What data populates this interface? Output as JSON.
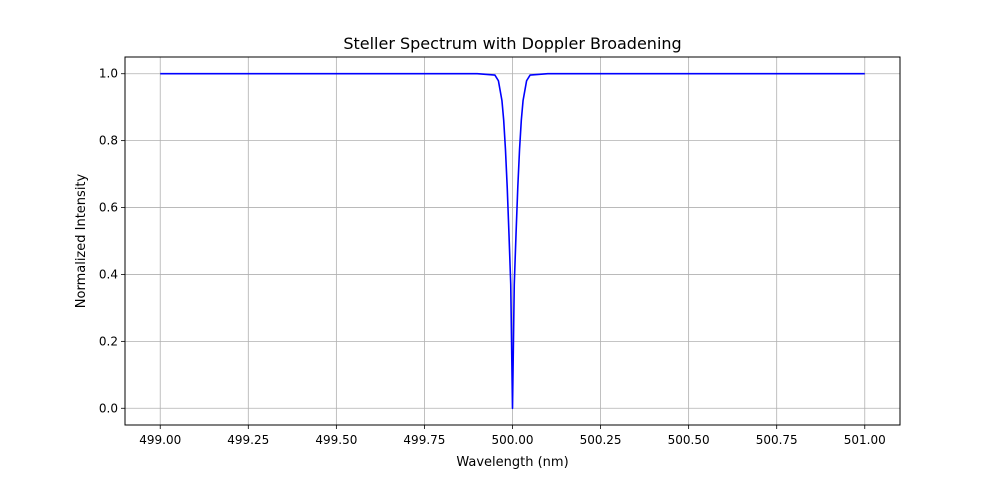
{
  "chart_data": {
    "type": "line",
    "title": "Steller Spectrum with Doppler Broadening",
    "xlabel": "Wavelength (nm)",
    "ylabel": "Normalized Intensity",
    "xlim": [
      498.9,
      501.1
    ],
    "ylim": [
      -0.05,
      1.05
    ],
    "xticks": [
      499.0,
      499.25,
      499.5,
      499.75,
      500.0,
      500.25,
      500.5,
      500.75,
      501.0
    ],
    "xtick_labels": [
      "499.00",
      "499.25",
      "499.50",
      "499.75",
      "500.00",
      "500.25",
      "500.50",
      "500.75",
      "501.00"
    ],
    "yticks": [
      0.0,
      0.2,
      0.4,
      0.6,
      0.8,
      1.0
    ],
    "ytick_labels": [
      "0.0",
      "0.2",
      "0.4",
      "0.6",
      "0.8",
      "1.0"
    ],
    "grid": true,
    "series": [
      {
        "color": "#0000ff",
        "x": [
          499.0,
          499.9,
          499.95,
          499.96,
          499.97,
          499.975,
          499.98,
          499.985,
          499.99,
          499.995,
          500.0,
          500.005,
          500.01,
          500.015,
          500.02,
          500.025,
          500.03,
          500.04,
          500.05,
          500.1,
          501.0
        ],
        "y": [
          1.0,
          1.0,
          0.996,
          0.979,
          0.92,
          0.861,
          0.774,
          0.66,
          0.52,
          0.37,
          0.0,
          0.37,
          0.52,
          0.66,
          0.774,
          0.861,
          0.92,
          0.979,
          0.996,
          1.0,
          1.0
        ]
      }
    ]
  }
}
